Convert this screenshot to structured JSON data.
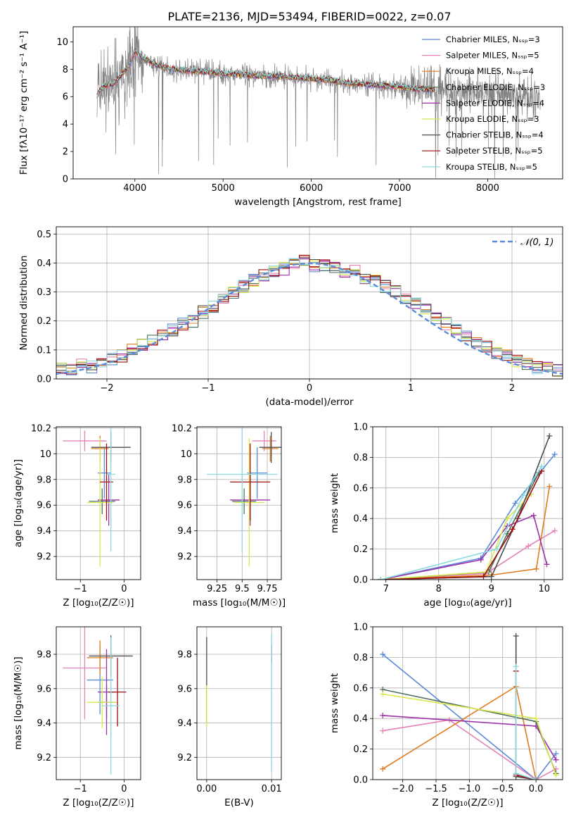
{
  "title": "PLATE=2136, MJD=53494, FIBERID=0022, z=0.07",
  "colors": {
    "series": [
      "#5b8bd9",
      "#e383b5",
      "#e07b1f",
      "#50705a",
      "#9c31a8",
      "#d8e84a",
      "#4d4d4d",
      "#9e0d0d",
      "#8ad9df"
    ],
    "data_spectrum": "#808080",
    "grid": "#b0b0b0"
  },
  "chart_data": [
    {
      "id": "spectrum",
      "type": "line",
      "xlabel": "wavelength [Angstrom, rest frame]",
      "ylabel": "Flux [fλ10⁻¹⁷ erg cm⁻² s⁻¹ A⁻¹]",
      "xlim": [
        3300,
        8850
      ],
      "ylim": [
        0,
        11.1
      ],
      "xticks": [
        4000,
        5000,
        6000,
        7000,
        8000
      ],
      "yticks": [
        0,
        2,
        4,
        6,
        8,
        10
      ],
      "grid": false,
      "legend_position": "top-right",
      "legend": [
        "Chabrier MILES, N_SSP=3",
        "Salpeter MILES, N_SSP=5",
        "Kroupa MILES, N_SSP=4",
        "Chabrier ELODIE, N_SSP=3",
        "Salpeter ELODIE, N_SSP=4",
        "Kroupa ELODIE, N_SSP=3",
        "Chabrier STELIB, N_SSP=4",
        "Salpeter STELIB, N_SSP=5",
        "Kroupa STELIB, N_SSP=5"
      ],
      "continuum": {
        "x": [
          3570,
          3650,
          3750,
          3850,
          3950,
          4000,
          4100,
          4250,
          4400,
          4600,
          4800,
          5000,
          5200,
          5400,
          5600,
          5800,
          6000,
          6200,
          6400,
          6600,
          6800,
          7000,
          7200,
          7400,
          7600,
          7800,
          8000,
          8200,
          8400,
          8600
        ],
        "y": [
          6.1,
          6.8,
          6.9,
          7.6,
          8.4,
          9.3,
          8.8,
          8.3,
          8.0,
          7.9,
          7.8,
          7.7,
          7.6,
          7.5,
          7.5,
          7.4,
          7.3,
          7.2,
          7.0,
          6.9,
          6.8,
          6.7,
          6.55,
          6.5,
          6.4,
          6.3,
          6.2,
          6.2,
          6.0,
          5.8
        ]
      },
      "data_x_range": [
        3570,
        8600
      ],
      "model_x_range": [
        3570,
        7400
      ]
    },
    {
      "id": "residuals",
      "type": "step",
      "xlabel": "(data-model)/error",
      "ylabel": "Normed distribution",
      "xlim": [
        -2.5,
        2.5
      ],
      "ylim": [
        0,
        0.525
      ],
      "xticks": [
        -2,
        -1,
        0,
        1,
        2
      ],
      "yticks": [
        0.0,
        0.1,
        0.2,
        0.3,
        0.4,
        0.5
      ],
      "grid": true,
      "legend_position": "top-right",
      "legend": [
        "𝒩(0, 1)"
      ],
      "bin_width": 0.1,
      "bin_start": -2.5,
      "base_values": [
        0.04,
        0.03,
        0.05,
        0.04,
        0.06,
        0.07,
        0.08,
        0.1,
        0.12,
        0.13,
        0.15,
        0.17,
        0.19,
        0.2,
        0.23,
        0.25,
        0.27,
        0.3,
        0.32,
        0.34,
        0.36,
        0.37,
        0.38,
        0.4,
        0.41,
        0.39,
        0.39,
        0.38,
        0.37,
        0.37,
        0.35,
        0.34,
        0.32,
        0.3,
        0.28,
        0.26,
        0.24,
        0.21,
        0.19,
        0.17,
        0.15,
        0.13,
        0.11,
        0.09,
        0.08,
        0.06,
        0.05,
        0.04,
        0.04,
        0.03
      ]
    },
    {
      "id": "age-vs-z",
      "type": "errorbar",
      "xlabel": "Z [log₁₀(Z/Z☉)]",
      "ylabel": "age  [log₁₀(age/yr)]",
      "xlim": [
        -1.55,
        0.38
      ],
      "ylim": [
        9.02,
        10.21
      ],
      "xticks": [
        -1,
        0
      ],
      "yticks": [
        9.2,
        9.4,
        9.6,
        9.8,
        10.0,
        10.2
      ],
      "grid": true,
      "points": [
        {
          "x": -0.45,
          "xerr": 0.15,
          "y": 9.85,
          "yerr": 0.2
        },
        {
          "x": -0.9,
          "xerr": 0.5,
          "y": 10.1,
          "yerr": 0.08
        },
        {
          "x": -0.55,
          "xerr": 0.2,
          "y": 10.04,
          "yerr": 0.1
        },
        {
          "x": -0.5,
          "xerr": 0.3,
          "y": 9.63,
          "yerr": 0.1
        },
        {
          "x": -0.35,
          "xerr": 0.25,
          "y": 9.64,
          "yerr": 0.2
        },
        {
          "x": -0.55,
          "xerr": 0.3,
          "y": 9.62,
          "yerr": 0.5
        },
        {
          "x": -0.3,
          "xerr": 0.45,
          "y": 10.05,
          "yerr": 0.12
        },
        {
          "x": -0.4,
          "xerr": 0.15,
          "y": 9.78,
          "yerr": 0.3
        },
        {
          "x": -0.3,
          "xerr": 0.1,
          "y": 9.84,
          "yerr": 0.6
        }
      ]
    },
    {
      "id": "age-vs-mass",
      "type": "errorbar",
      "xlabel": "mass [log₁₀(M/M☉)]",
      "ylabel": "",
      "xlim": [
        9.05,
        9.89
      ],
      "ylim": [
        9.02,
        10.21
      ],
      "xticks": [
        9.25,
        9.5,
        9.75
      ],
      "yticks": [
        9.2,
        9.4,
        9.6,
        9.8,
        10.0,
        10.2
      ],
      "grid": true,
      "points": [
        {
          "x": 9.65,
          "xerr": 0.1,
          "y": 9.85,
          "yerr": 0.2
        },
        {
          "x": 9.72,
          "xerr": 0.12,
          "y": 10.1,
          "yerr": 0.08
        },
        {
          "x": 9.78,
          "xerr": 0.08,
          "y": 10.04,
          "yerr": 0.1
        },
        {
          "x": 9.52,
          "xerr": 0.12,
          "y": 9.63,
          "yerr": 0.1
        },
        {
          "x": 9.58,
          "xerr": 0.2,
          "y": 9.64,
          "yerr": 0.2
        },
        {
          "x": 9.57,
          "xerr": 0.15,
          "y": 9.62,
          "yerr": 0.5
        },
        {
          "x": 9.79,
          "xerr": 0.12,
          "y": 10.05,
          "yerr": 0.12
        },
        {
          "x": 9.58,
          "xerr": 0.2,
          "y": 9.78,
          "yerr": 0.3
        },
        {
          "x": 9.5,
          "xerr": 0.35,
          "y": 9.84,
          "yerr": 0.6
        }
      ]
    },
    {
      "id": "weight-vs-age",
      "type": "line",
      "xlabel": "age  [log₁₀(age/yr)]",
      "ylabel": "mass weight",
      "xlim": [
        6.75,
        10.35
      ],
      "ylim": [
        0.0,
        1.0
      ],
      "xticks": [
        7,
        8,
        9,
        10
      ],
      "yticks": [
        0.0,
        0.2,
        0.4,
        0.6,
        0.8,
        1.0
      ],
      "grid": true,
      "series": [
        {
          "x": [
            6.9,
            8.8,
            9.45,
            10.2
          ],
          "y": [
            0.0,
            0.14,
            0.5,
            0.82
          ]
        },
        {
          "x": [
            6.9,
            8.9,
            9.7,
            10.2
          ],
          "y": [
            0.0,
            0.04,
            0.22,
            0.32
          ]
        },
        {
          "x": [
            6.9,
            9.0,
            9.85,
            10.1
          ],
          "y": [
            0.0,
            0.03,
            0.07,
            0.61
          ]
        },
        {
          "x": [
            6.9,
            8.95,
            9.3,
            9.9
          ],
          "y": [
            0.0,
            0.05,
            0.3,
            0.7
          ]
        },
        {
          "x": [
            6.9,
            8.8,
            9.3,
            9.8,
            10.05
          ],
          "y": [
            0.0,
            0.13,
            0.35,
            0.42,
            0.1
          ]
        },
        {
          "x": [
            6.9,
            8.9,
            9.3,
            9.75
          ],
          "y": [
            0.0,
            0.05,
            0.4,
            0.56
          ]
        },
        {
          "x": [
            6.9,
            9.0,
            9.5,
            10.1
          ],
          "y": [
            0.0,
            0.02,
            0.4,
            0.94
          ]
        },
        {
          "x": [
            6.9,
            8.85,
            9.4,
            9.95
          ],
          "y": [
            0.0,
            0.02,
            0.33,
            0.71
          ]
        },
        {
          "x": [
            6.9,
            9.1,
            9.6,
            9.95
          ],
          "y": [
            0.0,
            0.2,
            0.55,
            0.74
          ]
        }
      ]
    },
    {
      "id": "mass-vs-z",
      "type": "errorbar",
      "xlabel": "Z [log₁₀(Z/Z☉)]",
      "ylabel": "mass [log₁₀(M/M☉)]",
      "xlim": [
        -1.55,
        0.38
      ],
      "ylim": [
        9.07,
        9.96
      ],
      "xticks": [
        -1,
        0
      ],
      "yticks": [
        9.2,
        9.4,
        9.6,
        9.8
      ],
      "grid": true,
      "points": [
        {
          "x": -0.55,
          "xerr": 0.3,
          "y": 9.65,
          "yerr": 0.2
        },
        {
          "x": -0.9,
          "xerr": 0.5,
          "y": 9.72,
          "yerr": 0.3
        },
        {
          "x": -0.55,
          "xerr": 0.3,
          "y": 9.78,
          "yerr": 0.1
        },
        {
          "x": -0.4,
          "xerr": 0.2,
          "y": 9.52,
          "yerr": 0.1
        },
        {
          "x": -0.4,
          "xerr": 0.2,
          "y": 9.58,
          "yerr": 0.25
        },
        {
          "x": -0.5,
          "xerr": 0.35,
          "y": 9.52,
          "yerr": 0.15
        },
        {
          "x": -0.3,
          "xerr": 0.5,
          "y": 9.79,
          "yerr": 0.12
        },
        {
          "x": -0.15,
          "xerr": 0.2,
          "y": 9.58,
          "yerr": 0.2
        },
        {
          "x": -0.3,
          "xerr": 0.2,
          "y": 9.5,
          "yerr": 0.4
        }
      ]
    },
    {
      "id": "mass-vs-ebv",
      "type": "errorbar",
      "xlabel": "E(B-V)",
      "ylabel": "",
      "xlim": [
        -0.0015,
        0.0115
      ],
      "ylim": [
        9.07,
        9.96
      ],
      "xticks": [
        0.0,
        0.01
      ],
      "xtick_labels": [
        "0.00",
        "0.01"
      ],
      "yticks": [
        9.2,
        9.4,
        9.6,
        9.8
      ],
      "grid": true,
      "points": [
        {
          "x": 0.0,
          "xerr": 0.0,
          "y": 9.65,
          "yerr": 0.25,
          "color_index": 6
        },
        {
          "x": 0.0,
          "xerr": 0.0,
          "y": 9.5,
          "yerr": 0.12,
          "color_index": 5
        },
        {
          "x": 0.01,
          "xerr": 0.0,
          "y": 9.8,
          "yerr": 0.05,
          "color_index": 7
        },
        {
          "x": 0.01,
          "xerr": 0.0,
          "y": 9.52,
          "yerr": 0.4,
          "color_index": 8
        }
      ]
    },
    {
      "id": "weight-vs-z",
      "type": "line",
      "xlabel": "Z [log₁₀(Z/Z☉)]",
      "ylabel": "mass weight",
      "xlim": [
        -2.45,
        0.4
      ],
      "ylim": [
        0.0,
        1.0
      ],
      "xticks": [
        -2.0,
        -1.5,
        -1.0,
        -0.5,
        0.0
      ],
      "xtick_labels": [
        "−2.0",
        "−1.5",
        "−1.0",
        "−0.5",
        "0.0"
      ],
      "yticks": [
        0.0,
        0.2,
        0.4,
        0.6,
        0.8,
        1.0
      ],
      "grid": true,
      "series": [
        {
          "x": [
            -2.3,
            0.0,
            0.3
          ],
          "y": [
            0.82,
            0.0,
            0.17
          ]
        },
        {
          "x": [
            -2.3,
            -1.3,
            0.0,
            0.3
          ],
          "y": [
            0.32,
            0.39,
            0.0,
            0.07
          ]
        },
        {
          "x": [
            -2.3,
            -0.3,
            0.0
          ],
          "y": [
            0.07,
            0.61,
            0.0
          ]
        },
        {
          "x": [
            -2.3,
            0.0,
            0.3
          ],
          "y": [
            0.59,
            0.38,
            0.04
          ]
        },
        {
          "x": [
            -2.3,
            0.0,
            0.3
          ],
          "y": [
            0.42,
            0.35,
            0.13
          ]
        },
        {
          "x": [
            -2.3,
            0.0,
            0.3
          ],
          "y": [
            0.56,
            0.4,
            0.03
          ]
        },
        {
          "x": [
            -0.3,
            -0.3,
            0.0
          ],
          "y": [
            0.94,
            0.02,
            0.0
          ]
        },
        {
          "x": [
            -0.3,
            -0.3,
            0.0
          ],
          "y": [
            0.71,
            0.03,
            0.0
          ]
        },
        {
          "x": [
            -0.3,
            -0.3,
            0.0
          ],
          "y": [
            0.74,
            0.04,
            0.0
          ]
        }
      ]
    }
  ]
}
